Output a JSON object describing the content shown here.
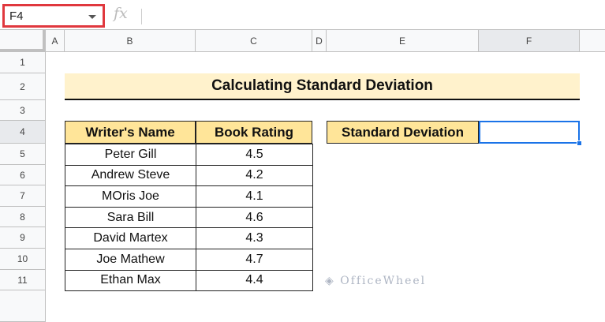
{
  "name_box": "F4",
  "formula_icon": "fx",
  "formula_value": "",
  "columns": [
    "A",
    "B",
    "C",
    "D",
    "E",
    "F"
  ],
  "rows": [
    "1",
    "2",
    "3",
    "4",
    "5",
    "6",
    "7",
    "8",
    "9",
    "10",
    "11"
  ],
  "selected_cell": "F4",
  "title": "Calculating Standard Deviation",
  "table": {
    "headers": [
      "Writer's Name",
      "Book Rating"
    ],
    "rows": [
      [
        "Peter Gill",
        "4.5"
      ],
      [
        "Andrew Steve",
        "4.2"
      ],
      [
        "MOris Joe",
        "4.1"
      ],
      [
        "Sara Bill",
        "4.6"
      ],
      [
        "David Martex",
        "4.3"
      ],
      [
        "Joe Mathew",
        "4.7"
      ],
      [
        "Ethan Max",
        "4.4"
      ]
    ]
  },
  "std_label": "Standard Deviation",
  "std_value": "",
  "watermark": "OfficeWheel",
  "colors": {
    "header_fill": "#ffe599",
    "title_fill": "#fff2cc",
    "selection": "#1a73e8",
    "namebox_highlight": "#e0383e"
  }
}
